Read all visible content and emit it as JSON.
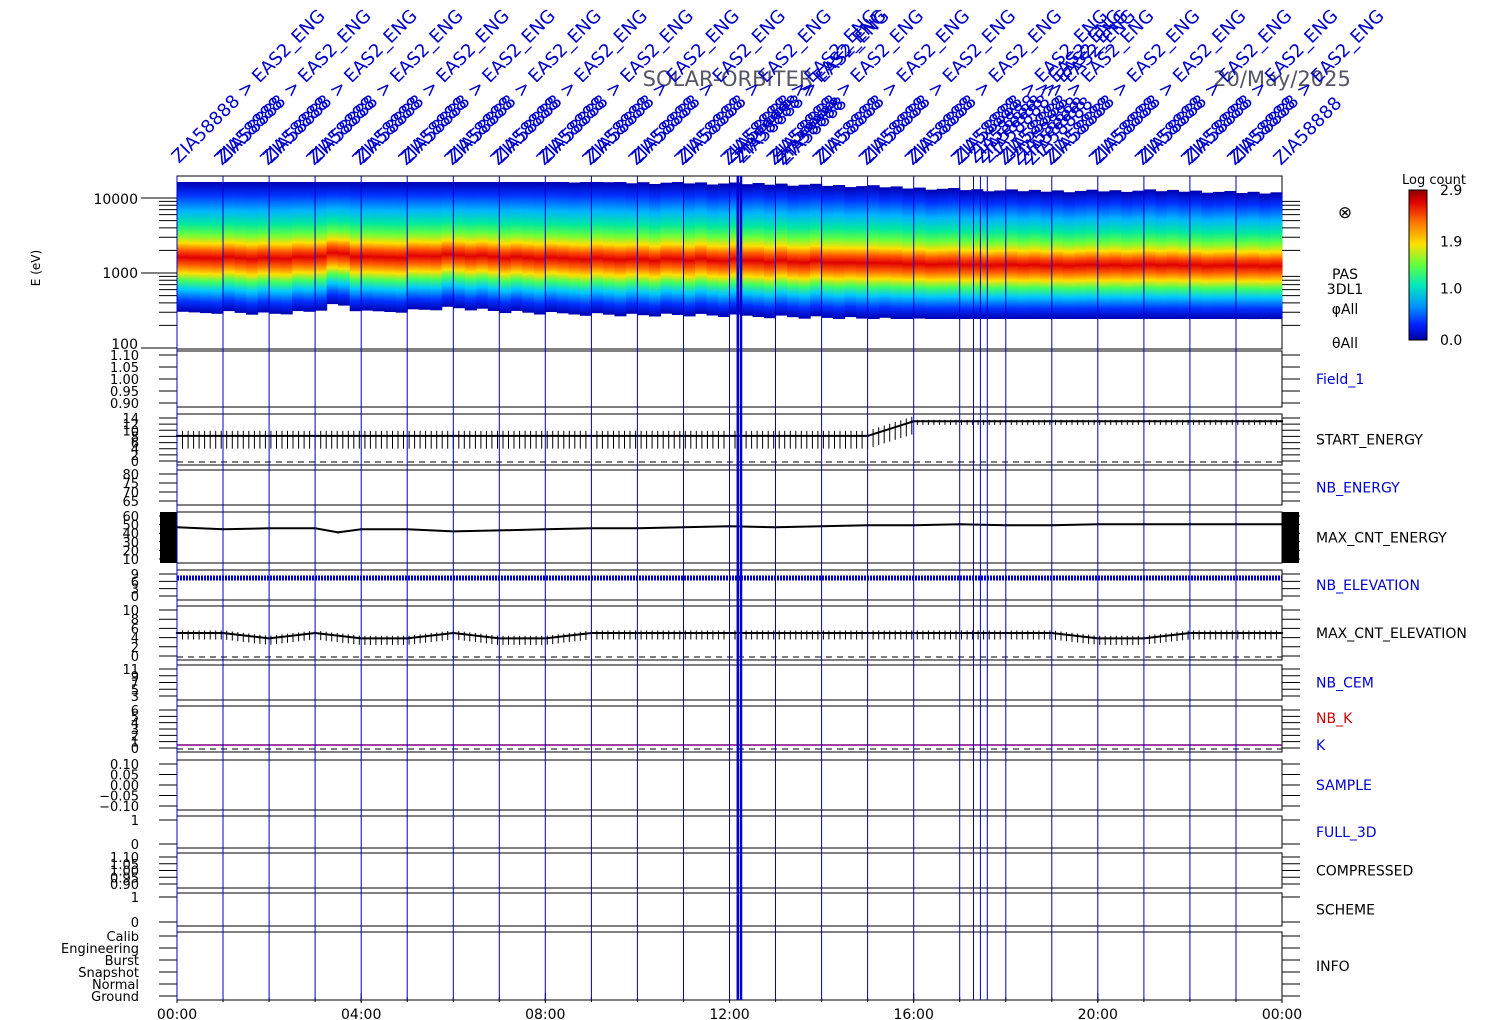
{
  "title_left": "SOLAR-ORBITER",
  "title_right": "20/May/2025",
  "colorbar": {
    "title": "Log count",
    "tick_labels": [
      "2.9",
      "1.9",
      "1.0",
      "0.0"
    ],
    "tick_values": [
      2.9,
      1.9,
      1.0,
      0.0
    ]
  },
  "spectrogram": {
    "ylabel": "E (eV)",
    "y_tick_labels": [
      "10000",
      "1000",
      "100"
    ],
    "y_tick_values": [
      10000,
      1000,
      100
    ],
    "labels": [
      "PAS",
      "3DL1",
      "φAll",
      "θAll"
    ],
    "symbol": "⊗"
  },
  "events": {
    "label": "ZIA58888 > EAS2_ENG",
    "overlap_label": "ZIA58888",
    "color": "#0000cc",
    "times_hours": [
      0.0,
      1.0,
      2.0,
      3.0,
      4.0,
      5.0,
      6.0,
      7.0,
      8.0,
      9.0,
      10.0,
      11.0,
      12.0,
      12.18,
      12.25,
      13.0,
      14.0,
      15.0,
      16.0,
      17.0,
      17.3,
      17.45,
      17.6,
      18.0,
      19.0,
      20.0,
      21.0,
      22.0,
      23.0
    ]
  },
  "panels": [
    {
      "label": "Field_1",
      "color": "#0000cc",
      "tick_labels": [
        "1.10",
        "1.05",
        "1.00",
        "0.95",
        "0.90"
      ]
    },
    {
      "label": "START_ENERGY",
      "color": "#000000",
      "tick_labels": [
        "14",
        "12",
        "10",
        "8",
        "6",
        "4",
        "2",
        "0"
      ]
    },
    {
      "label": "NB_ENERGY",
      "color": "#0000cc",
      "tick_labels": [
        "80",
        "75",
        "70",
        "65"
      ]
    },
    {
      "label": "MAX_CNT_ENERGY",
      "color": "#000000",
      "tick_labels": [
        "60",
        "50",
        "40",
        "30",
        "20",
        "10"
      ]
    },
    {
      "label": "NB_ELEVATION",
      "color": "#0000cc",
      "tick_labels": [
        "9",
        "6",
        "3",
        "0"
      ]
    },
    {
      "label": "MAX_CNT_ELEVATION",
      "color": "#000000",
      "tick_labels": [
        "10",
        "8",
        "6",
        "4",
        "2",
        "0"
      ]
    },
    {
      "label": "NB_CEM",
      "color": "#0000cc",
      "tick_labels": [
        "11",
        "9",
        "7",
        "5",
        "3"
      ]
    },
    {
      "label": "NB_K",
      "color": "#cc0000",
      "label2": "K",
      "label2_color": "#0000cc",
      "tick_labels": [
        "6",
        "5",
        "4",
        "3",
        "2",
        "1",
        "0"
      ]
    },
    {
      "label": "SAMPLE",
      "color": "#0000cc",
      "tick_labels": [
        "0.10",
        "0.05",
        "0.00",
        "−0.05",
        "−0.10"
      ]
    },
    {
      "label": "FULL_3D",
      "color": "#0000cc",
      "tick_labels": [
        "1",
        "0"
      ]
    },
    {
      "label": "COMPRESSED",
      "color": "#000000",
      "tick_labels": [
        "1.10",
        "1.05",
        "1.00",
        "0.95",
        "0.90"
      ]
    },
    {
      "label": "SCHEME",
      "color": "#000000",
      "tick_labels": [
        "1",
        "0"
      ]
    },
    {
      "label": "INFO",
      "color": "#000000",
      "tick_labels": [
        "Calib",
        "Engineering",
        "Burst",
        "Snapshot",
        "Normal",
        "Ground"
      ]
    }
  ],
  "chart_data": {
    "type": "line",
    "x_tick_labels": [
      "00:00",
      "04:00",
      "08:00",
      "12:00",
      "16:00",
      "20:00",
      "00:00"
    ],
    "x_range_hours": [
      0,
      24
    ],
    "series": [
      {
        "name": "MAX_CNT_ENERGY",
        "x_hours": [
          0,
          1,
          2,
          3,
          3.5,
          4,
          5,
          6,
          7,
          8,
          9,
          10,
          11,
          12,
          13,
          14,
          15,
          16,
          17,
          18,
          19,
          20,
          21,
          22,
          23,
          24
        ],
        "values": [
          45,
          43,
          44,
          44,
          40,
          43,
          43,
          41,
          42,
          43,
          44,
          44,
          45,
          46,
          45,
          46,
          47,
          47,
          48,
          47,
          47,
          48,
          48,
          48,
          48,
          48
        ]
      },
      {
        "name": "START_ENERGY",
        "x_hours": [
          0,
          1,
          2,
          3,
          4,
          5,
          6,
          7,
          8,
          9,
          10,
          11,
          12,
          13,
          14,
          15,
          16,
          17,
          18,
          19,
          20,
          21,
          22,
          23,
          24
        ],
        "values": [
          8,
          8,
          8,
          8,
          8,
          8,
          8,
          8,
          8,
          8,
          8,
          8,
          8,
          8,
          8,
          8,
          12,
          12,
          12,
          12,
          12,
          12,
          12,
          12,
          12
        ]
      },
      {
        "name": "MAX_CNT_ELEVATION",
        "x_hours": [
          0,
          1,
          2,
          3,
          4,
          5,
          6,
          7,
          8,
          9,
          10,
          11,
          12,
          13,
          14,
          15,
          16,
          17,
          18,
          19,
          20,
          21,
          22,
          23,
          24
        ],
        "values": [
          5,
          5,
          4,
          5,
          4,
          4,
          5,
          4,
          4,
          5,
          5,
          5,
          5,
          5,
          5,
          5,
          5,
          5,
          5,
          5,
          4,
          4,
          5,
          5,
          5
        ]
      },
      {
        "name": "PAS peak energy (eV)",
        "x_hours": [
          0,
          1,
          2,
          3,
          3.5,
          4,
          5,
          6,
          7,
          8,
          9,
          10,
          11,
          12,
          13,
          14,
          15,
          16,
          17,
          18,
          19,
          20,
          21,
          22,
          23,
          24
        ],
        "values": [
          1400,
          1500,
          1400,
          1500,
          1900,
          1450,
          1550,
          1700,
          1500,
          1400,
          1400,
          1350,
          1350,
          1300,
          1300,
          1250,
          1200,
          1150,
          1100,
          1050,
          1050,
          1050,
          1050,
          1050,
          1000,
          1000
        ]
      }
    ]
  }
}
